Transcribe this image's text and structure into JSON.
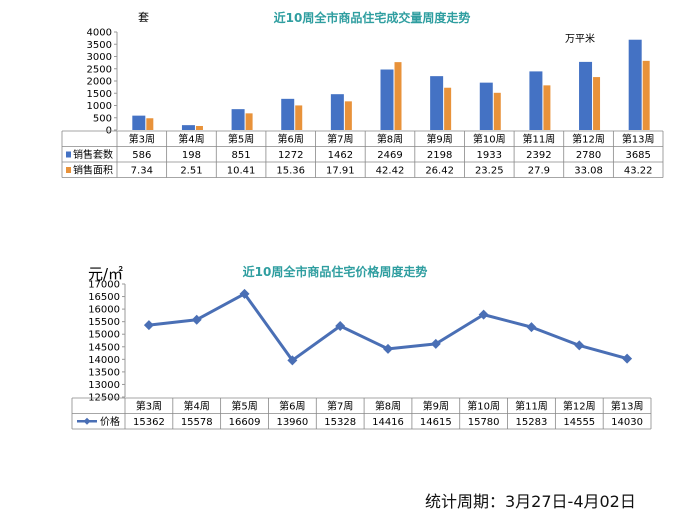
{
  "chart_data": [
    {
      "type": "bar",
      "title": "近10周全市商品住宅成交量周度走势",
      "ylabel": "套",
      "secondary_unit": "万平米",
      "ylim": [
        0,
        4000
      ],
      "yticks": [
        "0",
        "500",
        "1000",
        "1500",
        "2000",
        "2500",
        "3000",
        "3500",
        "4000"
      ],
      "categories": [
        "第3周",
        "第4周",
        "第5周",
        "第6周",
        "第7周",
        "第8周",
        "第9周",
        "第10周",
        "第11周",
        "第12周",
        "第13周"
      ],
      "series": [
        {
          "name": "销售套数",
          "color": "#4472c4",
          "values": [
            586,
            198,
            851,
            1272,
            1462,
            2469,
            2198,
            1933,
            2392,
            2780,
            3685
          ],
          "labels": [
            "586",
            "198",
            "851",
            "1272",
            "1462",
            "2469",
            "2198",
            "1933",
            "2392",
            "2780",
            "3685"
          ]
        },
        {
          "name": "销售面积",
          "color": "#e8923a",
          "values": [
            7.34,
            2.51,
            10.41,
            15.36,
            17.91,
            42.42,
            26.42,
            23.25,
            27.9,
            33.08,
            43.22
          ],
          "labels": [
            "7.34",
            "2.51",
            "10.41",
            "15.36",
            "17.91",
            "42.42",
            "26.42",
            "23.25",
            "27.9",
            "33.08",
            "43.22"
          ]
        }
      ]
    },
    {
      "type": "line",
      "title": "近10周全市商品住宅价格周度走势",
      "ylabel": "元/㎡",
      "ylim": [
        12500,
        17000
      ],
      "yticks": [
        "12500",
        "13000",
        "13500",
        "14000",
        "14500",
        "15000",
        "15500",
        "16000",
        "16500",
        "17000"
      ],
      "categories": [
        "第3周",
        "第4周",
        "第5周",
        "第6周",
        "第7周",
        "第8周",
        "第9周",
        "第10周",
        "第11周",
        "第12周",
        "第13周"
      ],
      "series": [
        {
          "name": "价格",
          "color": "#4a6fb5",
          "values": [
            15362,
            15578,
            16609,
            13960,
            15328,
            14416,
            14615,
            15780,
            15283,
            14555,
            14030
          ],
          "labels": [
            "15362",
            "15578",
            "16609",
            "13960",
            "15328",
            "14416",
            "14615",
            "15780",
            "15283",
            "14555",
            "14030"
          ]
        }
      ]
    }
  ],
  "footer": "统计周期：3月27日-4月02日"
}
